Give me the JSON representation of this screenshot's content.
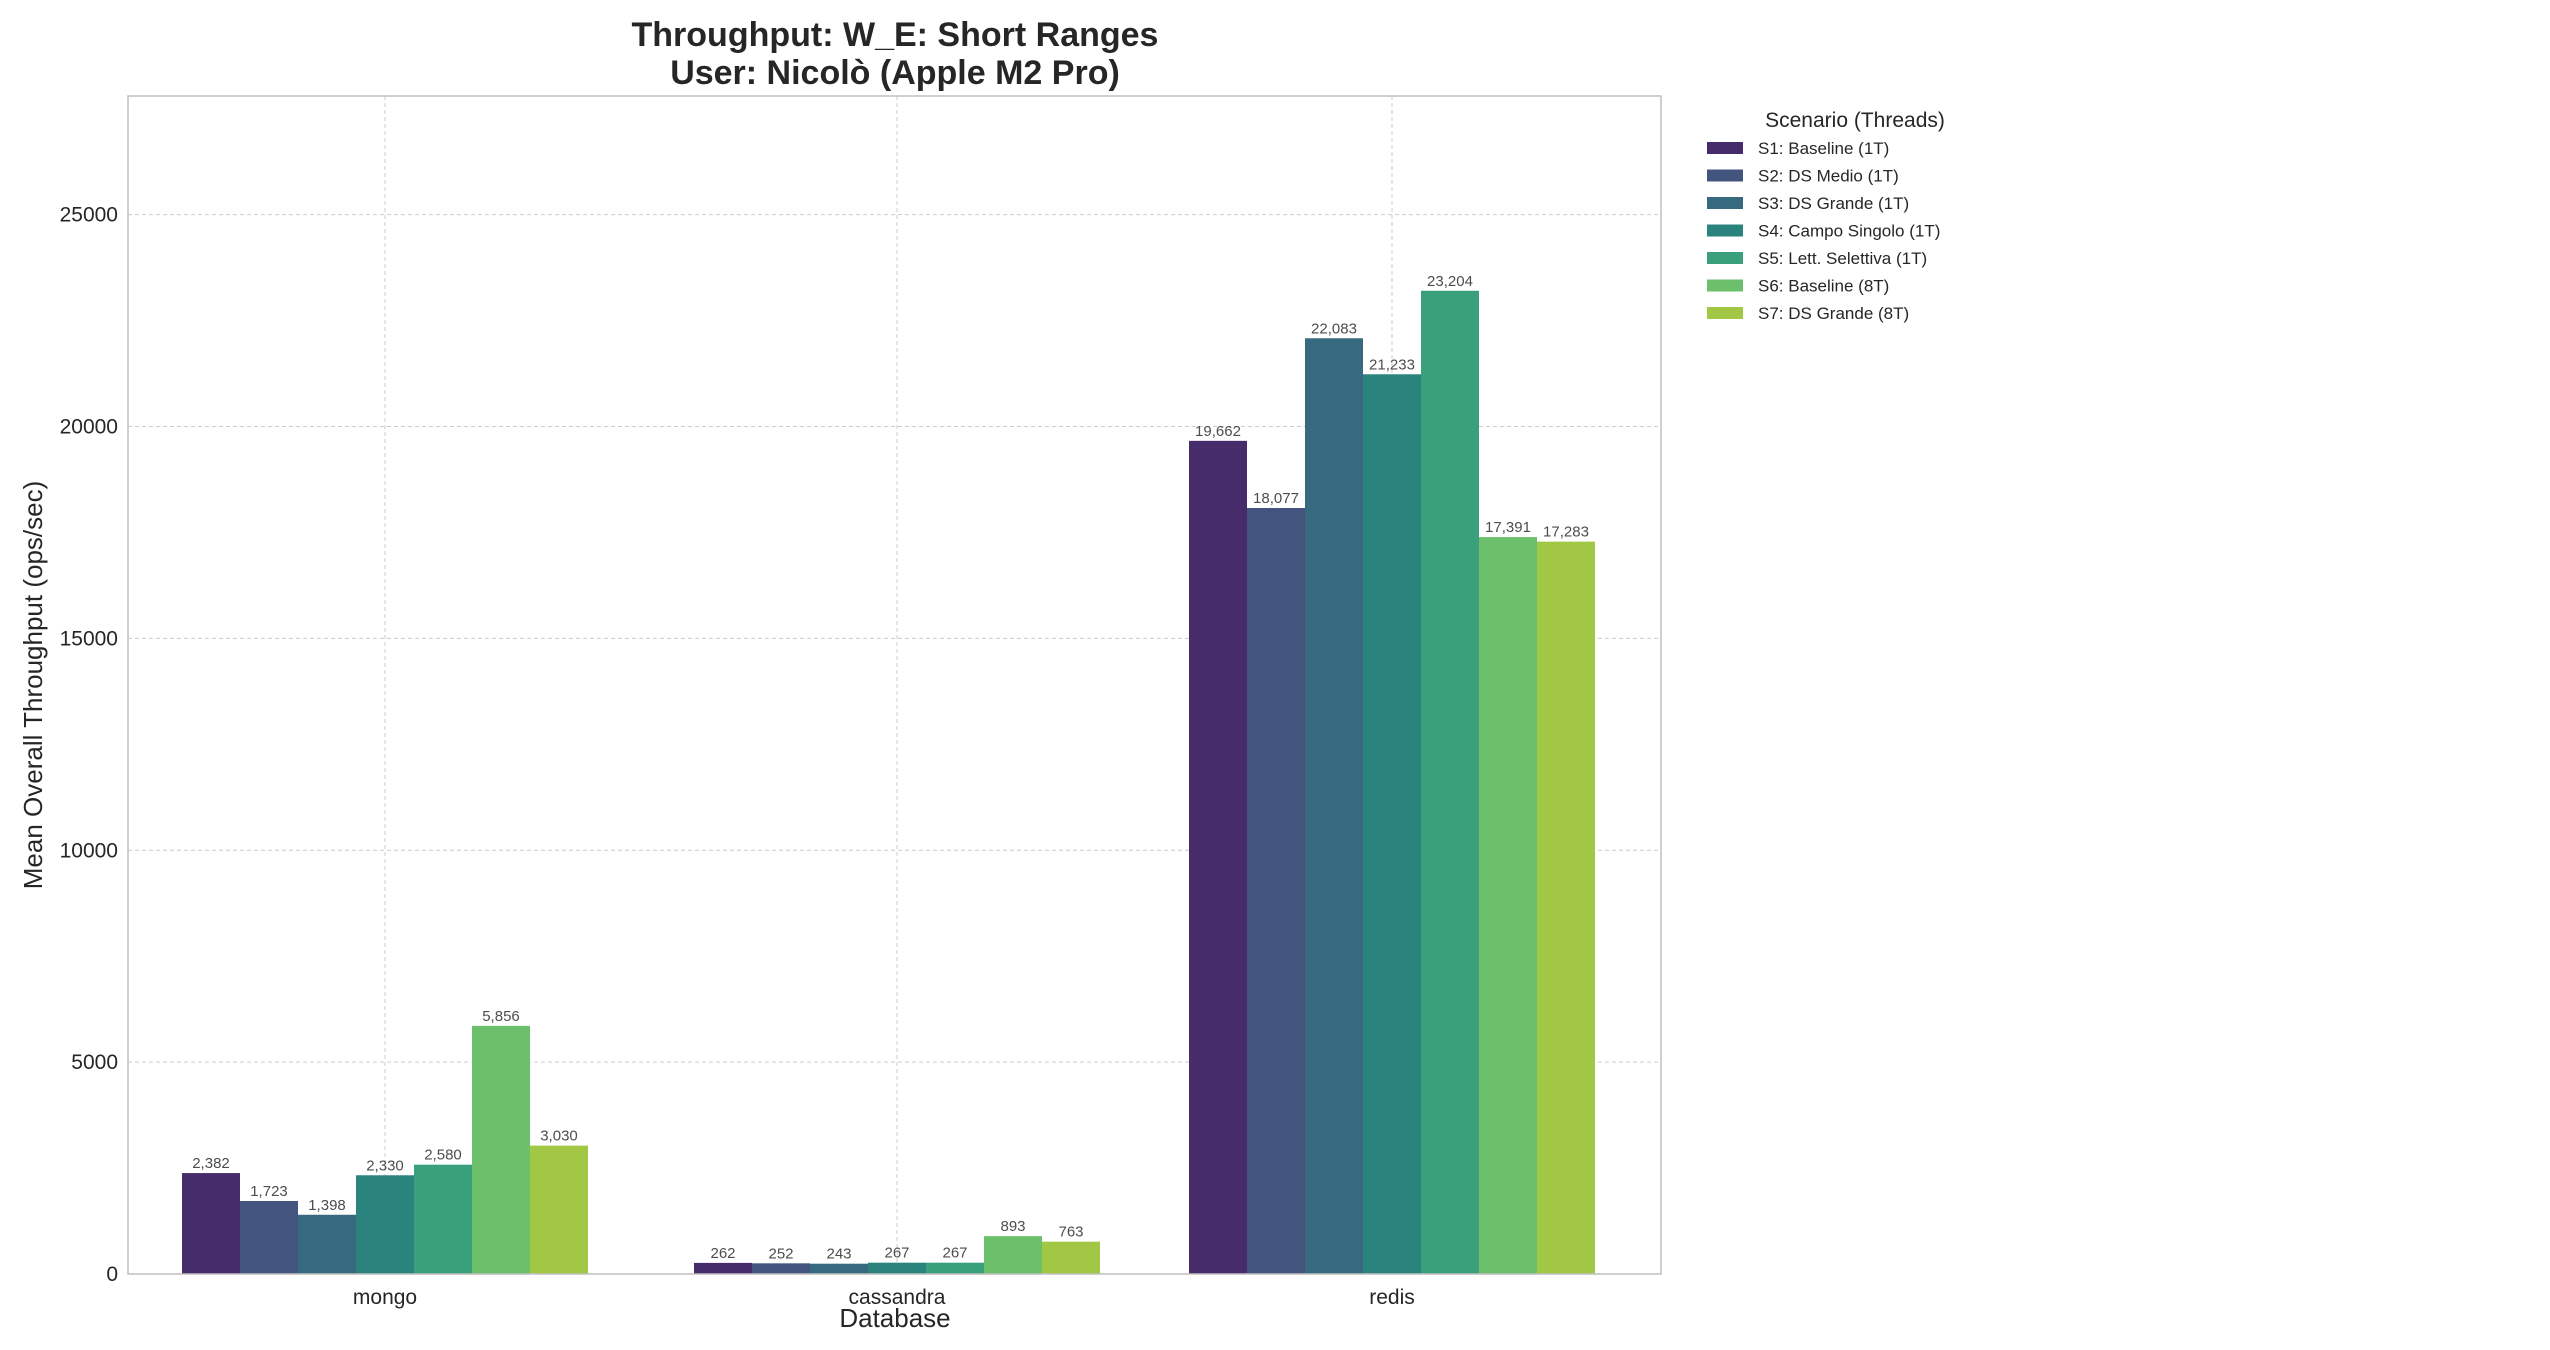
{
  "chart_data": {
    "type": "bar",
    "title": "Throughput: W_E: Short Ranges",
    "subtitle": "User: Nicolò (Apple M2 Pro)",
    "xlabel": "Database",
    "ylabel": "Mean Overall Throughput (ops/sec)",
    "categories": [
      "mongo",
      "cassandra",
      "redis"
    ],
    "ylim": [
      0,
      27800
    ],
    "yticks": [
      0,
      5000,
      10000,
      15000,
      20000,
      25000
    ],
    "grid": true,
    "legend": {
      "title": "Scenario (Threads)",
      "placement": "outside-top-right"
    },
    "series": [
      {
        "name": "S1: Baseline (1T)",
        "color": "#472c6b",
        "values": [
          2382,
          262,
          19662
        ],
        "labels": [
          "2,382",
          "262",
          "19,662"
        ]
      },
      {
        "name": "S2: DS Medio (1T)",
        "color": "#43557e",
        "values": [
          1723,
          252,
          18077
        ],
        "labels": [
          "1,723",
          "252",
          "18,077"
        ]
      },
      {
        "name": "S3: DS Grande (1T)",
        "color": "#386a7f",
        "values": [
          1398,
          243,
          22083
        ],
        "labels": [
          "1,398",
          "243",
          "22,083"
        ]
      },
      {
        "name": "S4: Campo Singolo (1T)",
        "color": "#2b837e",
        "values": [
          2330,
          267,
          21233
        ],
        "labels": [
          "2,330",
          "267",
          "21,233"
        ]
      },
      {
        "name": "S5: Lett. Selettiva (1T)",
        "color": "#39a07b",
        "values": [
          2580,
          267,
          23204
        ],
        "labels": [
          "2,580",
          "267",
          "23,204"
        ]
      },
      {
        "name": "S6: Baseline (8T)",
        "color": "#6cbf6b",
        "values": [
          5856,
          893,
          17391
        ],
        "labels": [
          "5,856",
          "893",
          "17,391"
        ]
      },
      {
        "name": "S7: DS Grande (8T)",
        "color": "#a2c744",
        "values": [
          3030,
          763,
          17283
        ],
        "labels": [
          "3,030",
          "763",
          "17,283"
        ]
      }
    ]
  }
}
